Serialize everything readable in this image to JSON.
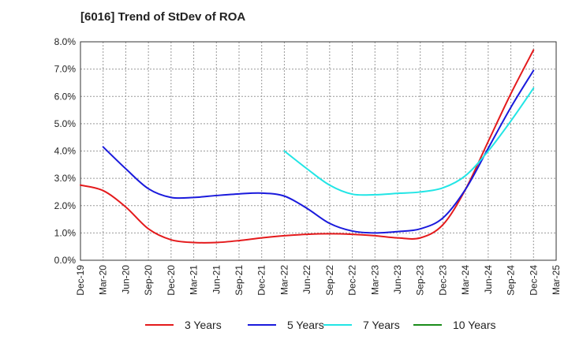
{
  "chart_data": {
    "type": "line",
    "title": "[6016]  Trend of StDev of ROA",
    "xlabel": "",
    "ylabel": "",
    "x_ticks": [
      "Dec-19",
      "Mar-20",
      "Jun-20",
      "Sep-20",
      "Dec-20",
      "Mar-21",
      "Jun-21",
      "Sep-21",
      "Dec-21",
      "Mar-22",
      "Jun-22",
      "Sep-22",
      "Dec-22",
      "Mar-23",
      "Jun-23",
      "Sep-23",
      "Dec-23",
      "Mar-24",
      "Jun-24",
      "Sep-24",
      "Dec-24",
      "Mar-25"
    ],
    "ylim": [
      0,
      8
    ],
    "y_ticks": [
      "0.0%",
      "1.0%",
      "2.0%",
      "3.0%",
      "4.0%",
      "5.0%",
      "6.0%",
      "7.0%",
      "8.0%"
    ],
    "grid": true,
    "legend_position": "bottom",
    "series": [
      {
        "name": "3 Years",
        "color": "#e41a1c",
        "x": [
          "Dec-19",
          "Mar-20",
          "Jun-20",
          "Sep-20",
          "Dec-20",
          "Mar-21",
          "Jun-21",
          "Sep-21",
          "Dec-21",
          "Mar-22",
          "Jun-22",
          "Sep-22",
          "Dec-22",
          "Mar-23",
          "Jun-23",
          "Sep-23",
          "Dec-23",
          "Mar-24",
          "Jun-24",
          "Sep-24",
          "Dec-24"
        ],
        "values": [
          2.75,
          2.55,
          1.95,
          1.15,
          0.75,
          0.65,
          0.65,
          0.72,
          0.82,
          0.9,
          0.95,
          0.97,
          0.95,
          0.9,
          0.82,
          0.82,
          1.3,
          2.6,
          4.35,
          6.1,
          7.7
        ]
      },
      {
        "name": "5 Years",
        "color": "#1a1adc",
        "x": [
          "Mar-20",
          "Jun-20",
          "Sep-20",
          "Dec-20",
          "Mar-21",
          "Jun-21",
          "Sep-21",
          "Dec-21",
          "Mar-22",
          "Jun-22",
          "Sep-22",
          "Dec-22",
          "Mar-23",
          "Jun-23",
          "Sep-23",
          "Dec-23",
          "Mar-24",
          "Jun-24",
          "Sep-24",
          "Dec-24"
        ],
        "values": [
          4.15,
          3.35,
          2.62,
          2.3,
          2.3,
          2.37,
          2.43,
          2.46,
          2.35,
          1.9,
          1.35,
          1.07,
          1.0,
          1.05,
          1.15,
          1.55,
          2.6,
          4.1,
          5.6,
          6.95
        ]
      },
      {
        "name": "7 Years",
        "color": "#22e5e5",
        "x": [
          "Mar-22",
          "Jun-22",
          "Sep-22",
          "Dec-22",
          "Mar-23",
          "Jun-23",
          "Sep-23",
          "Dec-23",
          "Mar-24",
          "Jun-24",
          "Sep-24",
          "Dec-24"
        ],
        "values": [
          4.0,
          3.35,
          2.75,
          2.42,
          2.4,
          2.45,
          2.5,
          2.65,
          3.1,
          4.0,
          5.1,
          6.3
        ]
      },
      {
        "name": "10 Years",
        "color": "#1a8c1a",
        "x": [],
        "values": []
      }
    ]
  }
}
